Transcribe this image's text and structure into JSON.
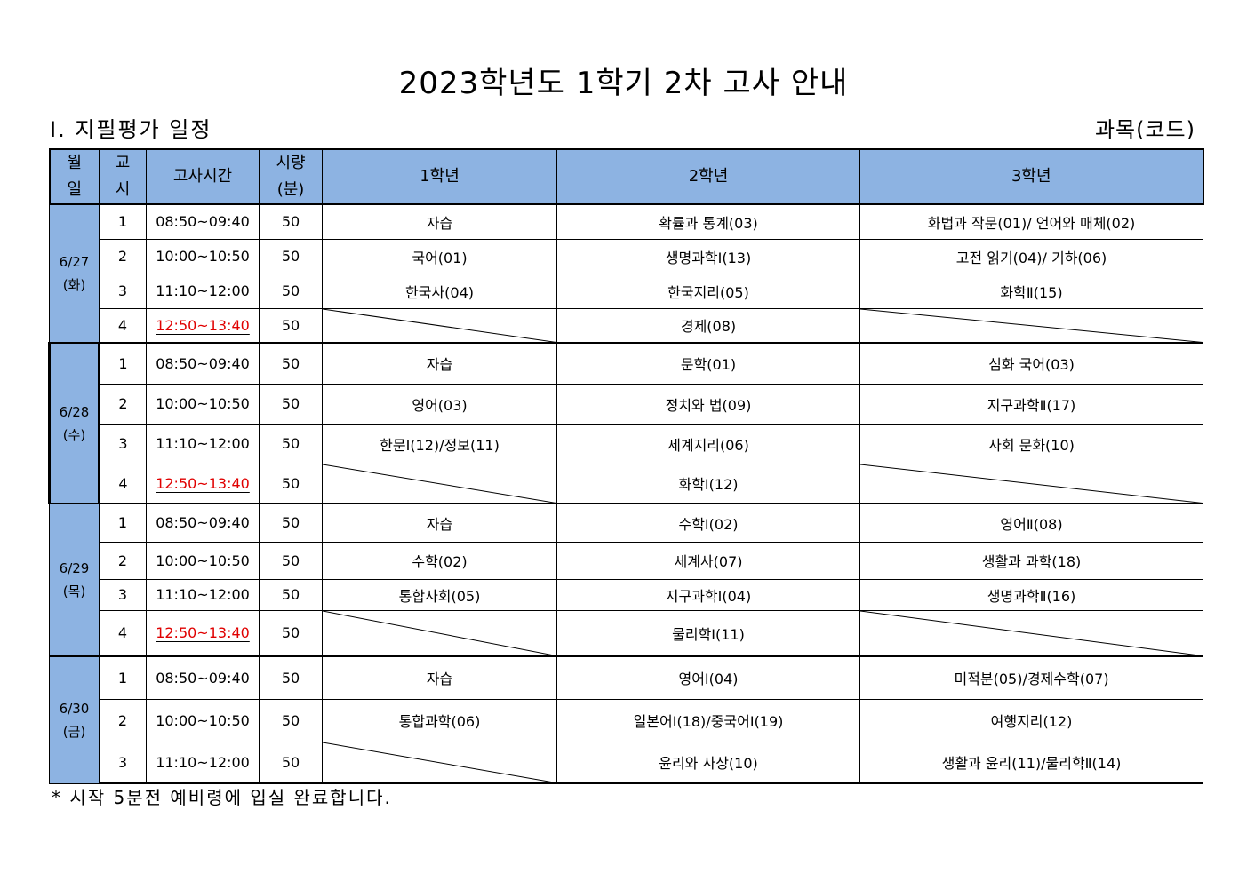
{
  "title": "2023학년도 1학기 2차 고사 안내",
  "section_heading": "Ⅰ. 지필평가 일정",
  "unit_label": "과목(코드)",
  "table": {
    "headers": {
      "date": [
        "월",
        "일"
      ],
      "period": [
        "교",
        "시"
      ],
      "time": "고사시간",
      "duration": [
        "시량",
        "(분)"
      ],
      "grade1": "1학년",
      "grade2": "2학년",
      "grade3": "3학년"
    },
    "days": [
      {
        "date": "6/27",
        "weekday": "(화)",
        "rows": [
          {
            "period": "1",
            "time": "08:50~09:40",
            "duration": "50",
            "grade1": "자습",
            "grade2": "확률과 통계(03)",
            "grade3": "화법과 작문(01)/ 언어와 매체(02)"
          },
          {
            "period": "2",
            "time": "10:00~10:50",
            "duration": "50",
            "grade1": "국어(01)",
            "grade2": "생명과학Ⅰ(13)",
            "grade3": "고전 읽기(04)/ 기하(06)"
          },
          {
            "period": "3",
            "time": "11:10~12:00",
            "duration": "50",
            "grade1": "한국사(04)",
            "grade2": "한국지리(05)",
            "grade3": "화학Ⅱ(15)"
          },
          {
            "period": "4",
            "time": "12:50~13:40",
            "duration": "50",
            "grade1": "",
            "grade2": "경제(08)",
            "grade3": ""
          }
        ]
      },
      {
        "date": "6/28",
        "weekday": "(수)",
        "rows": [
          {
            "period": "1",
            "time": "08:50~09:40",
            "duration": "50",
            "grade1": "자습",
            "grade2": "문학(01)",
            "grade3": "심화 국어(03)"
          },
          {
            "period": "2",
            "time": "10:00~10:50",
            "duration": "50",
            "grade1": "영어(03)",
            "grade2": "정치와 법(09)",
            "grade3": "지구과학Ⅱ(17)"
          },
          {
            "period": "3",
            "time": "11:10~12:00",
            "duration": "50",
            "grade1": "한문Ⅰ(12)/정보(11)",
            "grade2": "세계지리(06)",
            "grade3": "사회 문화(10)"
          },
          {
            "period": "4",
            "time": "12:50~13:40",
            "duration": "50",
            "grade1": "",
            "grade2": "화학Ⅰ(12)",
            "grade3": ""
          }
        ]
      },
      {
        "date": "6/29",
        "weekday": "(목)",
        "rows": [
          {
            "period": "1",
            "time": "08:50~09:40",
            "duration": "50",
            "grade1": "자습",
            "grade2": "수학Ⅰ(02)",
            "grade3": "영어Ⅱ(08)"
          },
          {
            "period": "2",
            "time": "10:00~10:50",
            "duration": "50",
            "grade1": "수학(02)",
            "grade2": "세계사(07)",
            "grade3": "생활과 과학(18)"
          },
          {
            "period": "3",
            "time": "11:10~12:00",
            "duration": "50",
            "grade1": "통합사회(05)",
            "grade2": "지구과학Ⅰ(04)",
            "grade3": "생명과학Ⅱ(16)"
          },
          {
            "period": "4",
            "time": "12:50~13:40",
            "duration": "50",
            "grade1": "",
            "grade2": "물리학Ⅰ(11)",
            "grade3": ""
          }
        ]
      },
      {
        "date": "6/30",
        "weekday": "(금)",
        "rows": [
          {
            "period": "1",
            "time": "08:50~09:40",
            "duration": "50",
            "grade1": "자습",
            "grade2": "영어Ⅰ(04)",
            "grade3": "미적분(05)/경제수학(07)"
          },
          {
            "period": "2",
            "time": "10:00~10:50",
            "duration": "50",
            "grade1": "통합과학(06)",
            "grade2": "일본어Ⅰ(18)/중국어Ⅰ(19)",
            "grade3": "여행지리(12)"
          },
          {
            "period": "3",
            "time": "11:10~12:00",
            "duration": "50",
            "grade1": "",
            "grade2": "윤리와 사상(10)",
            "grade3": "생활과 윤리(11)/물리학Ⅱ(14)"
          }
        ]
      }
    ]
  },
  "footnote": "* 시작 5분전 예비령에 입실 완료합니다.",
  "colors": {
    "header_bg": "#8db3e2",
    "highlight_time": "#e00000"
  }
}
